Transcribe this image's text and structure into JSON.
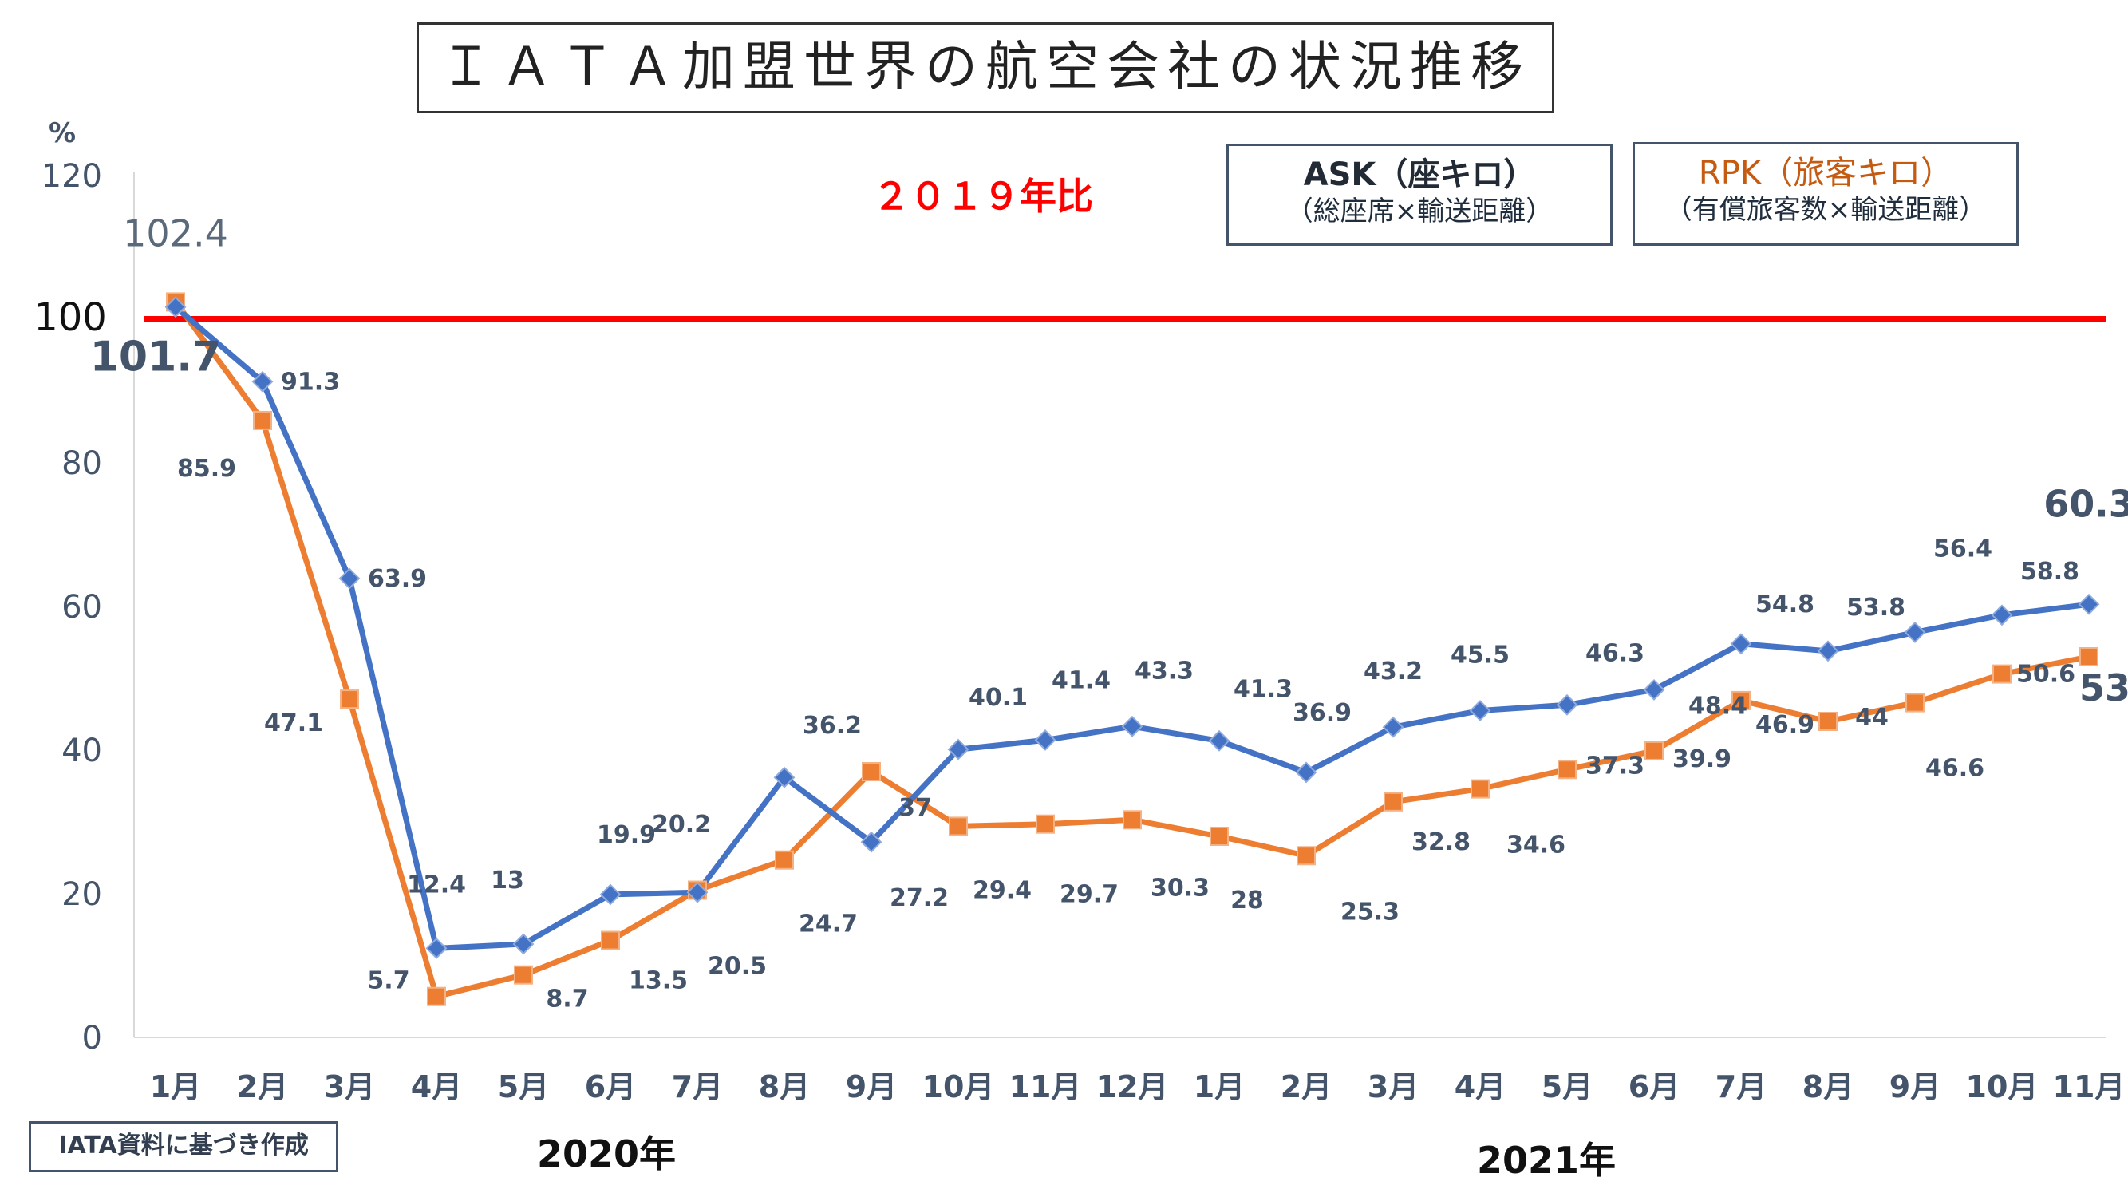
{
  "title": "ＩＡＴＡ加盟世界の航空会社の状況推移",
  "subtitle": "２０１９年比",
  "y_unit_label": "%",
  "reference_line_label": "100",
  "legend": {
    "ask": {
      "label": "ASK（座キロ）",
      "description": "（総座席×輸送距離）",
      "color": "#4472c4"
    },
    "rpk": {
      "label": "RPK（旅客キロ）",
      "description": "（有償旅客数×輸送距離）",
      "color": "#ed7d31"
    }
  },
  "source_note": "IATA資料に基づき作成",
  "year_labels": [
    "2020年",
    "2021年"
  ],
  "colors": {
    "reference_line": "#ff0000",
    "subtitle": "#ff0000",
    "axis_text": "#44546a",
    "grid": "#d9d9d9"
  },
  "chart_data": {
    "type": "line",
    "categories": [
      "1月",
      "2月",
      "3月",
      "4月",
      "5月",
      "6月",
      "7月",
      "8月",
      "9月",
      "10月",
      "11月",
      "12月",
      "1月",
      "2月",
      "3月",
      "4月",
      "5月",
      "6月",
      "7月",
      "8月",
      "9月",
      "10月",
      "11月"
    ],
    "y_ticks": [
      "0",
      "20",
      "40",
      "60",
      "80",
      "120"
    ],
    "ylim": [
      0,
      120
    ],
    "reference_value": 100,
    "series": [
      {
        "name": "ASK（座キロ）",
        "values": [
          101.7,
          91.3,
          63.9,
          12.4,
          13,
          19.9,
          20.2,
          36.2,
          27.2,
          40.1,
          41.4,
          43.3,
          41.3,
          36.9,
          43.2,
          45.5,
          46.3,
          48.4,
          54.8,
          53.8,
          56.4,
          58.8,
          60.3
        ]
      },
      {
        "name": "RPK（旅客キロ）",
        "values": [
          102.4,
          85.9,
          47.1,
          5.7,
          8.7,
          13.5,
          20.5,
          24.7,
          37,
          29.4,
          29.7,
          30.3,
          28,
          25.3,
          32.8,
          34.6,
          37.3,
          39.9,
          46.9,
          44,
          46.6,
          50.6,
          53
        ]
      }
    ],
    "data_labels": {
      "ask": [
        "101.7",
        "91.3",
        "63.9",
        "12.4",
        "13",
        "19.9",
        "20.2",
        "36.2",
        "27.2",
        "40.1",
        "41.4",
        "43.3",
        "41.3",
        "36.9",
        "43.2",
        "45.5",
        "46.3",
        "48.4",
        "54.8",
        "53.8",
        "56.4",
        "58.8",
        "60.3"
      ],
      "rpk": [
        "102.4",
        "85.9",
        "47.1",
        "5.7",
        "8.7",
        "13.5",
        "20.5",
        "24.7",
        "37",
        "29.4",
        "29.7",
        "30.3",
        "28",
        "25.3",
        "32.8",
        "34.6",
        "37.3",
        "39.9",
        "46.9",
        "44",
        "46.6",
        "50.6",
        "53"
      ]
    },
    "xlabel": "",
    "ylabel": "%",
    "grid": false
  }
}
